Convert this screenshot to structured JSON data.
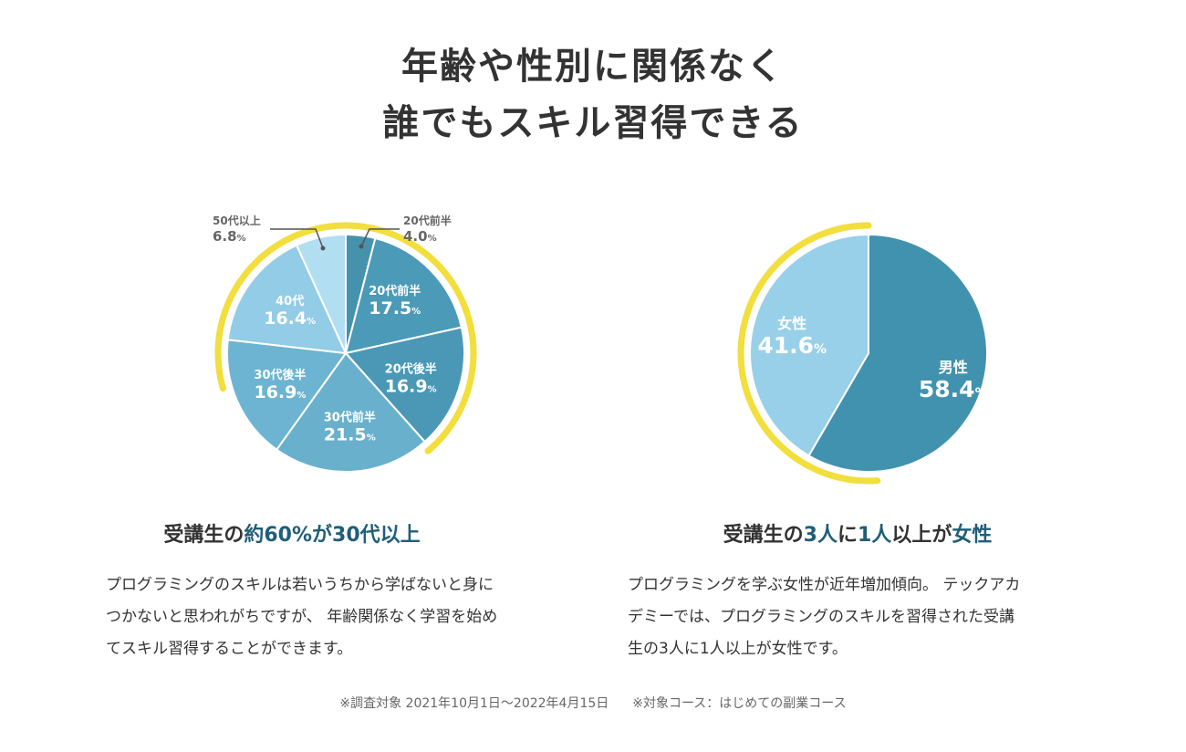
{
  "headline": {
    "line1": "年齢や性別に関係なく",
    "line2": "誰でもスキル習得できる"
  },
  "colors": {
    "accent_ring": "#f2de3c",
    "dark_teal": "#1f5f78",
    "text": "#333333"
  },
  "chart_data": [
    {
      "type": "pie",
      "title": "",
      "categories": [
        "20代前半",
        "20代前半",
        "20代後半",
        "30代前半",
        "30代後半",
        "40代",
        "50代以上"
      ],
      "values": [
        4.0,
        17.5,
        16.9,
        21.5,
        16.9,
        16.4,
        6.8
      ],
      "unit": "%",
      "slice_colors": [
        "#4692ad",
        "#4b9ab8",
        "#4a98b6",
        "#69b0cd",
        "#6cb4d1",
        "#93cce6",
        "#b2def2"
      ],
      "callouts": [
        {
          "label": "50代以上",
          "value": "6.8"
        },
        {
          "label": "20代前半",
          "value": "4.0"
        }
      ]
    },
    {
      "type": "pie",
      "title": "",
      "categories": [
        "男性",
        "女性"
      ],
      "values": [
        58.4,
        41.6
      ],
      "unit": "%",
      "slice_colors": [
        "#4192ae",
        "#98d0ea"
      ]
    }
  ],
  "left": {
    "heading_pre": "受講生の",
    "heading_hl": "約60%が30代以上",
    "body": [
      "プログラミングのスキルは若いうちから学ばないと身に",
      "つかないと思われがちですが、 年齢関係なく学習を始め",
      "てスキル習得することができます。"
    ]
  },
  "right": {
    "heading_pre": "受講生の",
    "heading_hl1": "3人",
    "heading_mid": "に",
    "heading_hl2": "1人",
    "heading_mid2": "以上が",
    "heading_hl3": "女性",
    "body": [
      "プログラミングを学ぶ女性が近年増加傾向。 テックアカ",
      "デミーでは、プログラミングのスキルを習得された受講",
      "生の3人に1人以上が女性です。"
    ]
  },
  "footnote": {
    "survey": "※調査対象 2021年10月1日〜2022年4月15日",
    "course": "※対象コース：はじめての副業コース"
  }
}
